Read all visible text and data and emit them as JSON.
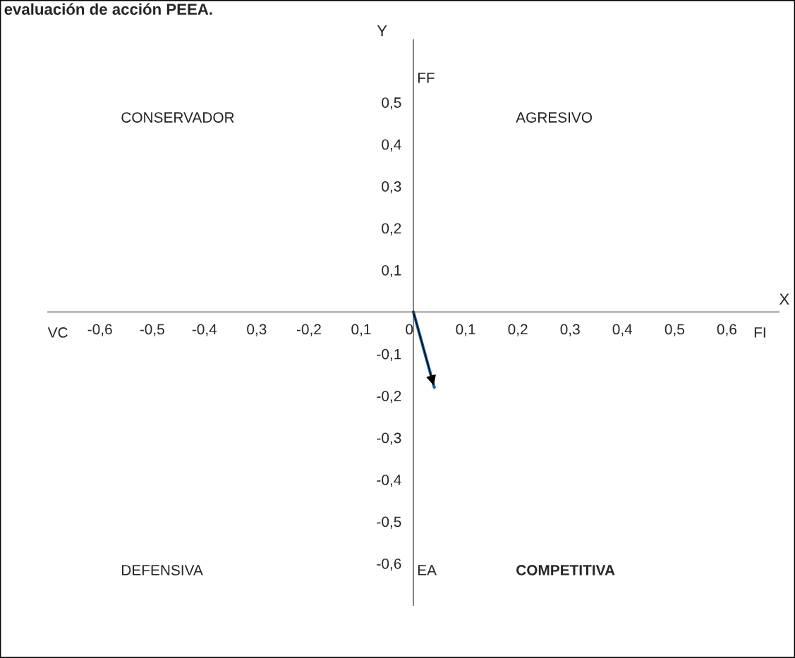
{
  "chart_data": {
    "type": "line",
    "title": "evaluación de acción PEEA.",
    "xlabel": "X",
    "ylabel": "Y",
    "x": [
      0,
      0.04
    ],
    "series": [
      {
        "color": "#1f5f9f",
        "values": [
          0,
          -0.18
        ]
      }
    ],
    "xlim": [
      -0.7,
      0.7
    ],
    "ylim": [
      -0.7,
      0.65
    ],
    "xticks": [
      {
        "value": -0.6,
        "label": "-0,6"
      },
      {
        "value": -0.5,
        "label": "-0,5"
      },
      {
        "value": -0.4,
        "label": "-0,4"
      },
      {
        "value": -0.3,
        "label": "0,3"
      },
      {
        "value": -0.2,
        "label": "-0,2"
      },
      {
        "value": -0.1,
        "label": "0,1"
      },
      0,
      {
        "value": 0.1,
        "label": "0,1"
      },
      {
        "value": 0.2,
        "label": "0,2"
      },
      {
        "value": 0.3,
        "label": "0,3"
      },
      {
        "value": 0.4,
        "label": "0,4"
      },
      {
        "value": 0.5,
        "label": "0,5"
      },
      {
        "value": 0.6,
        "label": "0,6"
      }
    ],
    "yticks": [
      {
        "value": 0.5,
        "label": "0,5"
      },
      {
        "value": 0.4,
        "label": "0,4"
      },
      {
        "value": 0.3,
        "label": "0,3"
      },
      {
        "value": 0.2,
        "label": "0,2"
      },
      {
        "value": 0.1,
        "label": "0,1"
      },
      {
        "value": -0.1,
        "label": "-0,1"
      },
      {
        "value": -0.2,
        "label": "-0,2"
      },
      {
        "value": -0.3,
        "label": "-0,3"
      },
      {
        "value": -0.4,
        "label": "-0,4"
      },
      {
        "value": -0.5,
        "label": "-0,5"
      },
      {
        "value": -0.6,
        "label": "-0,6"
      }
    ],
    "grid": false,
    "marker": "none",
    "line_style": "solid",
    "annotations": [
      "CONSERVADOR",
      "AGRESIVO",
      "DEFENSIVA",
      "COMPETITIVA",
      "FF",
      "EA",
      "VC",
      "FI"
    ]
  }
}
